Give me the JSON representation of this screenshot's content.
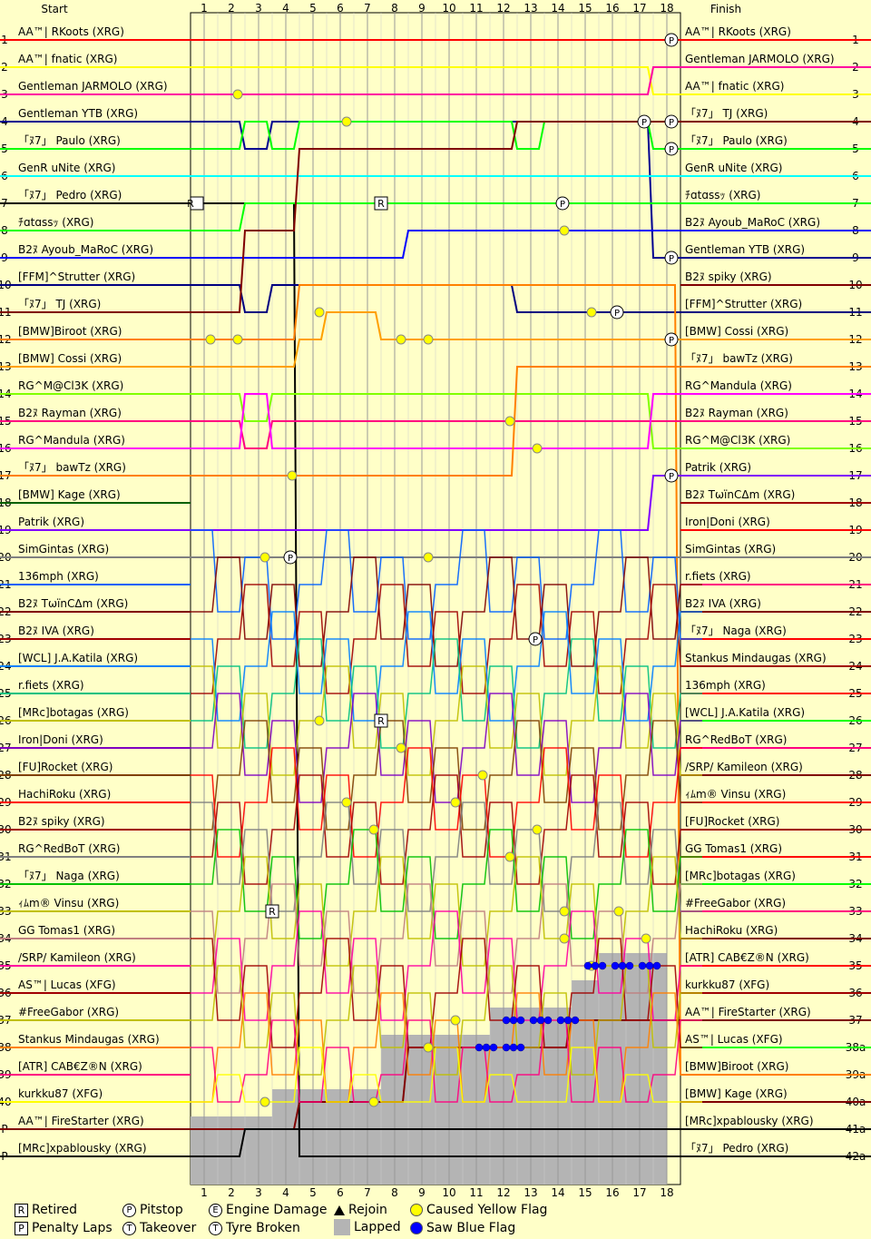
{
  "header": {
    "start": "Start",
    "finish": "Finish"
  },
  "laps": [
    "1",
    "2",
    "3",
    "4",
    "5",
    "6",
    "7",
    "8",
    "9",
    "10",
    "11",
    "12",
    "13",
    "14",
    "15",
    "16",
    "17",
    "18"
  ],
  "positions": [
    "1",
    "2",
    "3",
    "4",
    "5",
    "6",
    "7",
    "8",
    "9",
    "10",
    "11",
    "12",
    "13",
    "14",
    "15",
    "16",
    "17",
    "18",
    "19",
    "20",
    "21",
    "22",
    "23",
    "24",
    "25",
    "26",
    "27",
    "28",
    "29",
    "30",
    "31",
    "32",
    "33",
    "34",
    "35",
    "36",
    "37",
    "38",
    "39",
    "40",
    "P",
    "P"
  ],
  "finish_positions": [
    "1",
    "2",
    "3",
    "4",
    "5",
    "6",
    "7",
    "8",
    "9",
    "10",
    "11",
    "12",
    "13",
    "14",
    "15",
    "16",
    "17",
    "18",
    "19",
    "20",
    "21",
    "22",
    "23",
    "24",
    "25",
    "26",
    "27",
    "28",
    "29",
    "30",
    "31",
    "32",
    "33",
    "34",
    "35",
    "36",
    "37",
    "38a",
    "39a",
    "40a",
    "41a",
    "42a"
  ],
  "start_grid": [
    "AA™| RKoots (XRG)",
    "AA™| fnatic (XRG)",
    "Gentleman JARMOLO (XRG)",
    "Gentleman YTB (XRG)",
    "「ﾇ7」 Paulo (XRG)",
    "GenR uNite (XRG)",
    "「ﾇ7」 Pedro (XRG)",
    "ﾁɑtɑssｯ (XRG)",
    "B2ﾇ Ayoub_MaRoC (XRG)",
    "[FFM]^Strutter (XRG)",
    "「ﾇ7」 TJ (XRG)",
    "[BMW]Biroot (XRG)",
    "[BMW] Cossi (XRG)",
    "RG^M@Cl3K (XRG)",
    "B2ﾇ Rayman (XRG)",
    "RG^Mandula (XRG)",
    "「ﾇ7」 bawTz (XRG)",
    "[BMW] Kage (XRG)",
    "Patrik (XRG)",
    "SimGintas (XRG)",
    "136mph (XRG)",
    "B2ﾇ TωïnCΔm (XRG)",
    "B2ﾇ IVA (XRG)",
    "[WCL] J.A.Katila (XRG)",
    "r.fiets (XRG)",
    "[MRc]botagas (XRG)",
    "Iron|Doni (XRG)",
    "[FU]Rocket (XRG)",
    "HachiRoku (XRG)",
    "B2ﾇ spiky (XRG)",
    "RG^RedBoT (XRG)",
    "「ﾇ7」 Naga (XRG)",
    "ｨﾑm® Vinsu (XRG)",
    "GG Tomas1 (XRG)",
    "/SRP/ Kamileon (XRG)",
    "AS™| Lucas (XFG)",
    "#FreeGabor (XRG)",
    "Stankus Mindaugas (XRG)",
    "[ATR] CAB€Z®N (XRG)",
    "kurkku87 (XFG)",
    "AA™| FireStarter (XRG)",
    "[MRc]xpablousky (XRG)"
  ],
  "finish_order": [
    "AA™| RKoots (XRG)",
    "Gentleman JARMOLO (XRG)",
    "AA™| fnatic (XRG)",
    "「ﾇ7」 TJ (XRG)",
    "「ﾇ7」 Paulo (XRG)",
    "GenR uNite (XRG)",
    "ﾁɑtɑssｯ (XRG)",
    "B2ﾇ Ayoub_MaRoC (XRG)",
    "Gentleman YTB (XRG)",
    "B2ﾇ spiky (XRG)",
    "[FFM]^Strutter (XRG)",
    "[BMW] Cossi (XRG)",
    "「ﾇ7」 bawTz (XRG)",
    "RG^Mandula (XRG)",
    "B2ﾇ Rayman (XRG)",
    "RG^M@Cl3K (XRG)",
    "Patrik (XRG)",
    "B2ﾇ TωïnCΔm (XRG)",
    "Iron|Doni (XRG)",
    "SimGintas (XRG)",
    "r.fiets (XRG)",
    "B2ﾇ IVA (XRG)",
    "「ﾇ7」 Naga (XRG)",
    "Stankus Mindaugas (XRG)",
    "136mph (XRG)",
    "[WCL] J.A.Katila (XRG)",
    "RG^RedBoT (XRG)",
    "/SRP/ Kamileon (XRG)",
    "ｨﾑm® Vinsu (XRG)",
    "[FU]Rocket (XRG)",
    "GG Tomas1 (XRG)",
    "[MRc]botagas (XRG)",
    "#FreeGabor (XRG)",
    "HachiRoku (XRG)",
    "[ATR] CAB€Z®N (XRG)",
    "kurkku87 (XFG)",
    "AA™| FireStarter (XRG)",
    "AS™| Lucas (XFG)",
    "[BMW]Biroot (XRG)",
    "[BMW] Kage (XRG)",
    "[MRc]xpablousky (XRG)",
    "「ﾇ7」 Pedro (XRG)"
  ],
  "legend": {
    "retired": "Retired",
    "penalty": "Penalty Laps",
    "pitstop": "Pitstop",
    "takeover": "Takeover",
    "engine": "Engine Damage",
    "tyre": "Tyre Broken",
    "rejoin": "Rejoin",
    "lapped": "Lapped",
    "yellow": "Caused Yellow Flag",
    "blue": "Saw Blue Flag"
  },
  "colors": {
    "background": "#ffffc8",
    "yellow_flag": "#ffff00",
    "blue_flag": "#0000ff",
    "lapped": "#b4b4b4"
  },
  "chart_data": {
    "type": "line",
    "title": "",
    "xlabel": "",
    "ylabel": "",
    "x": [
      0,
      1,
      2,
      3,
      4,
      5,
      6,
      7,
      8,
      9,
      10,
      11,
      12,
      13,
      14,
      15,
      16,
      17,
      18
    ],
    "ylim": [
      1,
      42
    ],
    "series": [
      {
        "name": "AA™| RKoots (XRG)",
        "color": "#ff0000",
        "values": [
          1,
          1,
          1,
          1,
          1,
          1,
          1,
          1,
          1,
          1,
          1,
          1,
          1,
          1,
          1,
          1,
          1,
          1,
          1
        ]
      },
      {
        "name": "AA™| fnatic (XRG)",
        "color": "#ffff00",
        "values": [
          2,
          2,
          2,
          2,
          2,
          2,
          2,
          2,
          2,
          2,
          2,
          2,
          2,
          2,
          2,
          2,
          2,
          3,
          3
        ]
      },
      {
        "name": "Gentleman JARMOLO (XRG)",
        "color": "#ff00a0",
        "values": [
          3,
          3,
          3,
          3,
          3,
          3,
          3,
          3,
          3,
          3,
          3,
          3,
          3,
          3,
          3,
          3,
          3,
          2,
          2
        ]
      },
      {
        "name": "Gentleman YTB (XRG)",
        "color": "#000090",
        "values": [
          4,
          4,
          5,
          4,
          4,
          4,
          4,
          4,
          4,
          4,
          4,
          4,
          4,
          4,
          4,
          4,
          4,
          9,
          9
        ]
      },
      {
        "name": "「ﾇ7」 Paulo (XRG)",
        "color": "#00ff00",
        "values": [
          5,
          5,
          4,
          5,
          4,
          4,
          4,
          4,
          4,
          4,
          4,
          4,
          5,
          4,
          4,
          4,
          4,
          5,
          5
        ]
      },
      {
        "name": "GenR uNite (XRG)",
        "color": "#00ffff",
        "values": [
          6,
          6,
          6,
          6,
          6,
          6,
          6,
          6,
          6,
          6,
          6,
          6,
          6,
          6,
          6,
          6,
          6,
          6,
          6
        ]
      },
      {
        "name": "「ﾇ7」 Pedro (XRG)",
        "color": "#000000",
        "values": [
          7,
          7,
          7,
          7,
          42,
          42,
          42,
          42,
          42,
          42,
          42,
          42,
          42,
          42,
          42,
          42,
          42,
          42,
          42
        ]
      },
      {
        "name": "ﾁɑtɑssｯ (XRG)",
        "color": "#00ff00",
        "values": [
          8,
          8,
          7,
          7,
          7,
          7,
          7,
          7,
          7,
          7,
          7,
          7,
          7,
          7,
          7,
          7,
          7,
          7,
          7
        ]
      },
      {
        "name": "B2ﾇ Ayoub_MaRoC (XRG)",
        "color": "#0000ff",
        "values": [
          9,
          9,
          9,
          9,
          9,
          9,
          9,
          9,
          8,
          8,
          8,
          8,
          8,
          8,
          8,
          8,
          8,
          8,
          8
        ]
      },
      {
        "name": "[FFM]^Strutter (XRG)",
        "color": "#000080",
        "values": [
          10,
          10,
          11,
          10,
          10,
          10,
          10,
          10,
          10,
          10,
          10,
          10,
          11,
          11,
          11,
          11,
          11,
          11,
          11
        ]
      },
      {
        "name": "「ﾇ7」 TJ (XRG)",
        "color": "#800000",
        "values": [
          11,
          11,
          8,
          8,
          5,
          5,
          5,
          5,
          5,
          5,
          5,
          5,
          4,
          4,
          4,
          4,
          4,
          4,
          4
        ]
      },
      {
        "name": "[BMW]Biroot (XRG)",
        "color": "#ff8000",
        "values": [
          12,
          12,
          12,
          12,
          10,
          10,
          10,
          10,
          10,
          10,
          10,
          10,
          10,
          10,
          10,
          10,
          10,
          10,
          39
        ]
      },
      {
        "name": "[BMW] Cossi (XRG)",
        "color": "#ffa000",
        "values": [
          13,
          13,
          13,
          13,
          12,
          11,
          11,
          12,
          12,
          12,
          12,
          12,
          12,
          12,
          12,
          12,
          12,
          12,
          12
        ]
      },
      {
        "name": "RG^M@Cl3K (XRG)",
        "color": "#80ff00",
        "values": [
          14,
          14,
          15,
          14,
          14,
          14,
          14,
          14,
          14,
          14,
          14,
          14,
          14,
          14,
          14,
          14,
          14,
          16,
          16
        ]
      },
      {
        "name": "B2ﾇ Rayman (XRG)",
        "color": "#ff0080",
        "values": [
          15,
          15,
          16,
          15,
          15,
          15,
          15,
          15,
          15,
          15,
          15,
          15,
          15,
          15,
          15,
          15,
          15,
          15,
          15
        ]
      },
      {
        "name": "RG^Mandula (XRG)",
        "color": "#ff00ff",
        "values": [
          16,
          16,
          14,
          16,
          16,
          16,
          16,
          16,
          16,
          16,
          16,
          16,
          16,
          16,
          16,
          16,
          16,
          14,
          14
        ]
      },
      {
        "name": "「ﾇ7」 bawTz (XRG)",
        "color": "#ff8000",
        "values": [
          17,
          17,
          17,
          17,
          17,
          17,
          17,
          17,
          17,
          17,
          17,
          17,
          13,
          13,
          13,
          13,
          13,
          13,
          13
        ]
      },
      {
        "name": "Patrik (XRG)",
        "color": "#8000ff",
        "values": [
          19,
          19,
          19,
          19,
          19,
          19,
          19,
          19,
          19,
          19,
          19,
          19,
          19,
          19,
          19,
          19,
          19,
          17,
          17
        ]
      },
      {
        "name": "SimGintas (XRG)",
        "color": "#808080",
        "values": [
          20,
          20,
          20,
          20,
          20,
          20,
          20,
          20,
          20,
          20,
          20,
          20,
          20,
          20,
          20,
          20,
          20,
          20,
          20
        ]
      },
      {
        "name": "AA™| FireStarter (XRG)",
        "color": "#800000",
        "values": [
          41,
          41,
          41,
          41,
          40,
          40,
          40,
          40,
          38,
          38,
          38,
          38,
          38,
          38,
          37,
          37,
          37,
          37,
          37
        ]
      },
      {
        "name": "[MRc]xpablousky (XRG)",
        "color": "#000000",
        "values": [
          42,
          42,
          41,
          41,
          41,
          41,
          41,
          41,
          41,
          41,
          41,
          41,
          41,
          41,
          41,
          41,
          41,
          41,
          41
        ]
      }
    ],
    "markers": {
      "caused_yellow_flag": true,
      "saw_blue_flag": true,
      "pitstop": true,
      "retired": true,
      "lapped_area": true
    },
    "grid": true,
    "legend_position": "bottom"
  }
}
